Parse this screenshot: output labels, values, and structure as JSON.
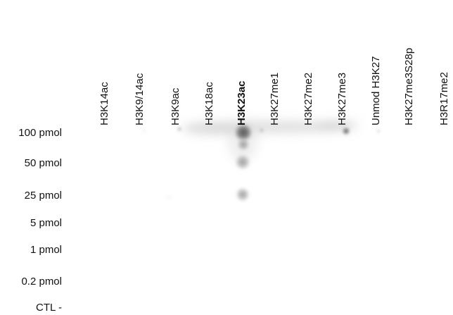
{
  "blot": {
    "columns": [
      {
        "label": "H3K14ac",
        "bold": false
      },
      {
        "label": "H3K9/14ac",
        "bold": false
      },
      {
        "label": "H3K9ac",
        "bold": false
      },
      {
        "label": "H3K18ac",
        "bold": false
      },
      {
        "label": "H3K23ac",
        "bold": true
      },
      {
        "label": "H3K27me1",
        "bold": false
      },
      {
        "label": "H3K27me2",
        "bold": false
      },
      {
        "label": "H3K27me3",
        "bold": false
      },
      {
        "label": "Unmod H3K27",
        "bold": false
      },
      {
        "label": "H3K27me3S28p",
        "bold": false
      },
      {
        "label": "H3R17me2",
        "bold": false
      }
    ],
    "rows": [
      {
        "label": "100 pmol"
      },
      {
        "label": "50 pmol"
      },
      {
        "label": "25 pmol"
      },
      {
        "label": "5 pmol"
      },
      {
        "label": "1 pmol"
      },
      {
        "label": "0.2 pmol"
      },
      {
        "label": "CTL -"
      }
    ],
    "colors": {
      "background": "#ffffff",
      "text": "#111111",
      "spot": "#5a5a5a"
    }
  }
}
